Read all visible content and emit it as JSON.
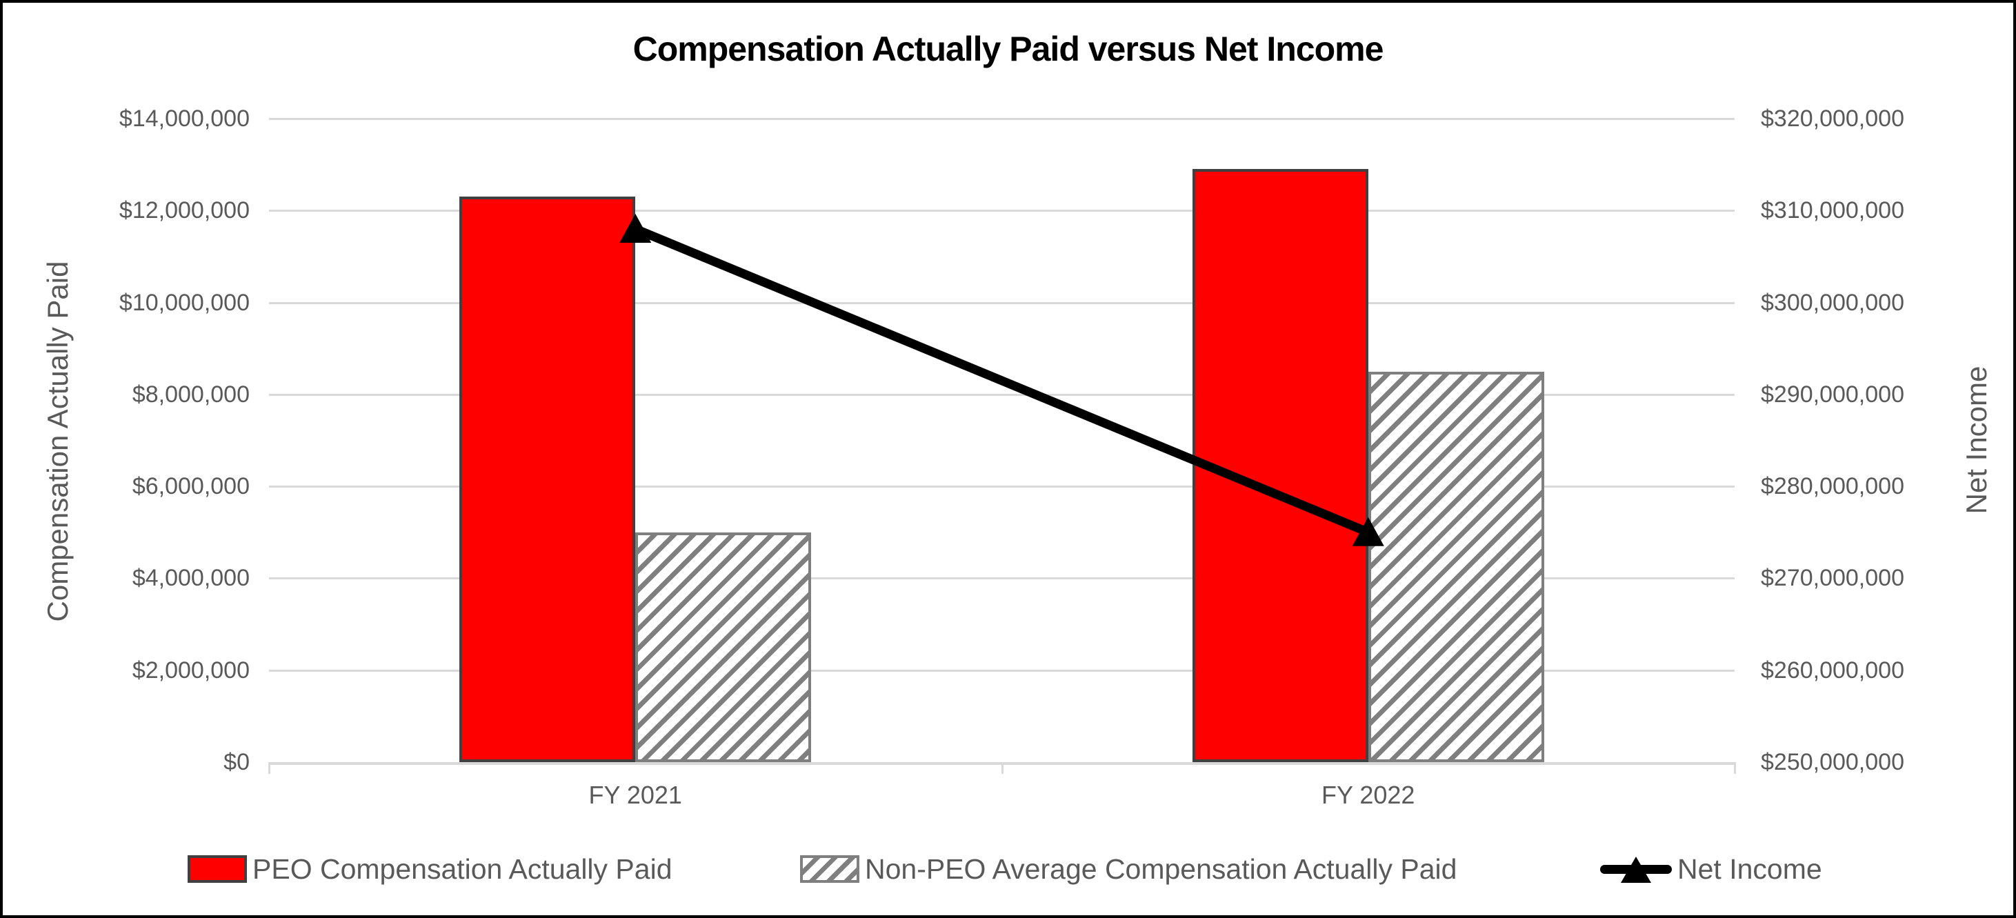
{
  "chart_data": {
    "type": "bar",
    "subtype": "combo-bar-line-dual-axis",
    "title": "Compensation Actually Paid versus Net Income",
    "categories": [
      "FY 2021",
      "FY 2022"
    ],
    "series": [
      {
        "name": "PEO Compensation Actually Paid",
        "type": "bar",
        "axis": "left",
        "style": "solid-red",
        "values": [
          12300000,
          12900000
        ]
      },
      {
        "name": "Non-PEO Average Compensation Actually Paid",
        "type": "bar",
        "axis": "left",
        "style": "gray-hatch",
        "values": [
          5000000,
          8500000
        ]
      },
      {
        "name": "Net Income",
        "type": "line",
        "axis": "right",
        "style": "black-line-triangle-markers",
        "values": [
          308000000,
          275000000
        ]
      }
    ],
    "left_axis": {
      "title": "Compensation Actually Paid",
      "min": 0,
      "max": 14000000,
      "tick_step": 2000000,
      "tick_labels": [
        "$0",
        "$2,000,000",
        "$4,000,000",
        "$6,000,000",
        "$8,000,000",
        "$10,000,000",
        "$12,000,000",
        "$14,000,000"
      ]
    },
    "right_axis": {
      "title": "Net Income",
      "min": 250000000,
      "max": 320000000,
      "tick_step": 10000000,
      "tick_labels": [
        "$250,000,000",
        "$260,000,000",
        "$270,000,000",
        "$280,000,000",
        "$290,000,000",
        "$300,000,000",
        "$310,000,000",
        "$320,000,000"
      ]
    },
    "grid": true,
    "legend_position": "bottom"
  },
  "colors": {
    "peo_bar": "#ff0000",
    "bar_border": "#404040",
    "hatch_stripe": "#7f7f7f",
    "line": "#000000",
    "grid": "#d9d9d9",
    "axis_text": "#595959",
    "title_text": "#000000",
    "background": "#ffffff",
    "frame_border": "#000000"
  }
}
